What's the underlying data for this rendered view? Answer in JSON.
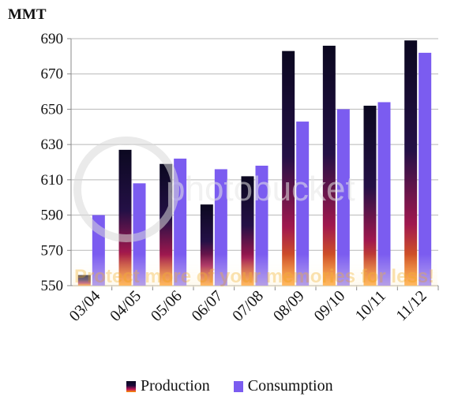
{
  "chart_data": {
    "type": "bar",
    "unit_label": "MMT",
    "categories": [
      "03/04",
      "04/05",
      "05/06",
      "06/07",
      "07/08",
      "08/09",
      "09/10",
      "10/11",
      "11/12"
    ],
    "series": [
      {
        "name": "Production",
        "values": [
          556,
          627,
          619,
          596,
          612,
          683,
          686,
          652,
          689
        ]
      },
      {
        "name": "Consumption",
        "values": [
          590,
          608,
          622,
          616,
          618,
          643,
          650,
          654,
          682
        ]
      }
    ],
    "ylim": [
      550,
      690
    ],
    "yticks": [
      550,
      570,
      590,
      610,
      630,
      650,
      670,
      690
    ],
    "grid": true,
    "legend_position": "bottom",
    "colors": {
      "production": "#0b0820",
      "consumption": "#7b5cf0",
      "grid": "#b8b8b8",
      "axis": "#888888"
    }
  },
  "watermark": {
    "brand": "photobucket",
    "tagline": "Protect more of your memories for less!"
  }
}
